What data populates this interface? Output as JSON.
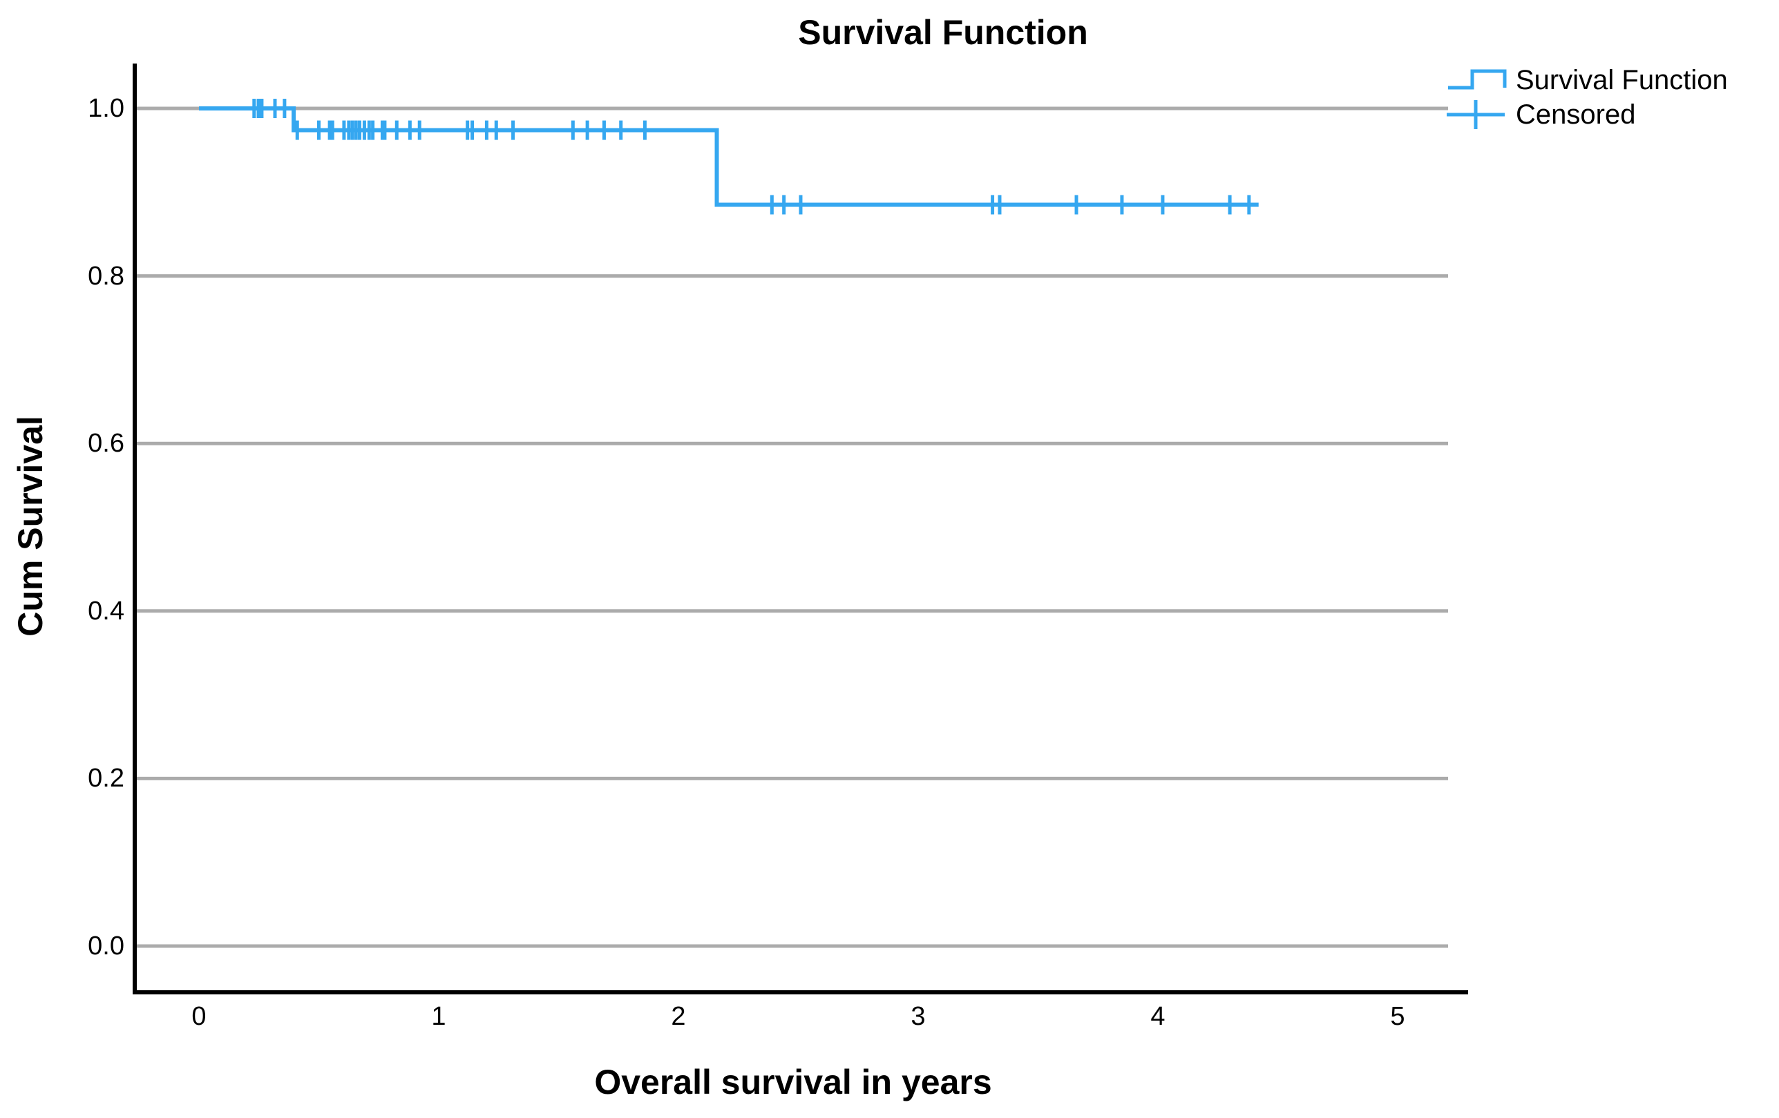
{
  "title": "Survival Function",
  "legend": {
    "items": [
      {
        "label": "Survival Function",
        "symbol": "step-line-icon"
      },
      {
        "label": "Censored",
        "symbol": "plus-tick-icon"
      }
    ]
  },
  "colors": {
    "series": "#35A7F0",
    "grid": "#ABABAB",
    "axis": "#000000",
    "text": "#000000",
    "background": "#FFFFFF"
  },
  "chart_data": {
    "type": "line",
    "subtype": "kaplan-meier-step",
    "title": "Survival Function",
    "xlabel": "Overall survival in years",
    "ylabel": "Cum Survival",
    "xlim": [
      -0.27,
      5.29
    ],
    "ylim": [
      -0.055,
      1.054
    ],
    "xticks": [
      "0",
      "1",
      "2",
      "3",
      "4",
      "5"
    ],
    "yticks": [
      "0.0",
      "0.2",
      "0.4",
      "0.6",
      "0.8",
      "1.0"
    ],
    "grid": "horizontal",
    "legend_position": "top-right",
    "series": [
      {
        "name": "Survival Function",
        "points": [
          [
            0,
            1.0
          ],
          [
            0.395,
            1.0
          ],
          [
            0.395,
            0.974
          ],
          [
            2.16,
            0.974
          ],
          [
            2.16,
            0.885
          ],
          [
            4.42,
            0.885
          ]
        ]
      }
    ],
    "censored": [
      [
        0.23,
        1.0
      ],
      [
        0.248,
        1.0
      ],
      [
        0.262,
        1.0
      ],
      [
        0.317,
        1.0
      ],
      [
        0.357,
        1.0
      ],
      [
        0.41,
        0.974
      ],
      [
        0.5,
        0.974
      ],
      [
        0.545,
        0.974
      ],
      [
        0.557,
        0.974
      ],
      [
        0.605,
        0.974
      ],
      [
        0.625,
        0.974
      ],
      [
        0.64,
        0.974
      ],
      [
        0.655,
        0.974
      ],
      [
        0.67,
        0.974
      ],
      [
        0.69,
        0.974
      ],
      [
        0.71,
        0.974
      ],
      [
        0.725,
        0.974
      ],
      [
        0.765,
        0.974
      ],
      [
        0.775,
        0.974
      ],
      [
        0.825,
        0.974
      ],
      [
        0.88,
        0.974
      ],
      [
        0.92,
        0.974
      ],
      [
        1.12,
        0.974
      ],
      [
        1.14,
        0.974
      ],
      [
        1.2,
        0.974
      ],
      [
        1.24,
        0.974
      ],
      [
        1.31,
        0.974
      ],
      [
        1.56,
        0.974
      ],
      [
        1.62,
        0.974
      ],
      [
        1.69,
        0.974
      ],
      [
        1.76,
        0.974
      ],
      [
        1.86,
        0.974
      ],
      [
        2.39,
        0.885
      ],
      [
        2.44,
        0.885
      ],
      [
        2.51,
        0.885
      ],
      [
        3.31,
        0.885
      ],
      [
        3.34,
        0.885
      ],
      [
        3.66,
        0.885
      ],
      [
        3.85,
        0.885
      ],
      [
        4.02,
        0.885
      ],
      [
        4.3,
        0.885
      ],
      [
        4.38,
        0.885
      ]
    ]
  }
}
